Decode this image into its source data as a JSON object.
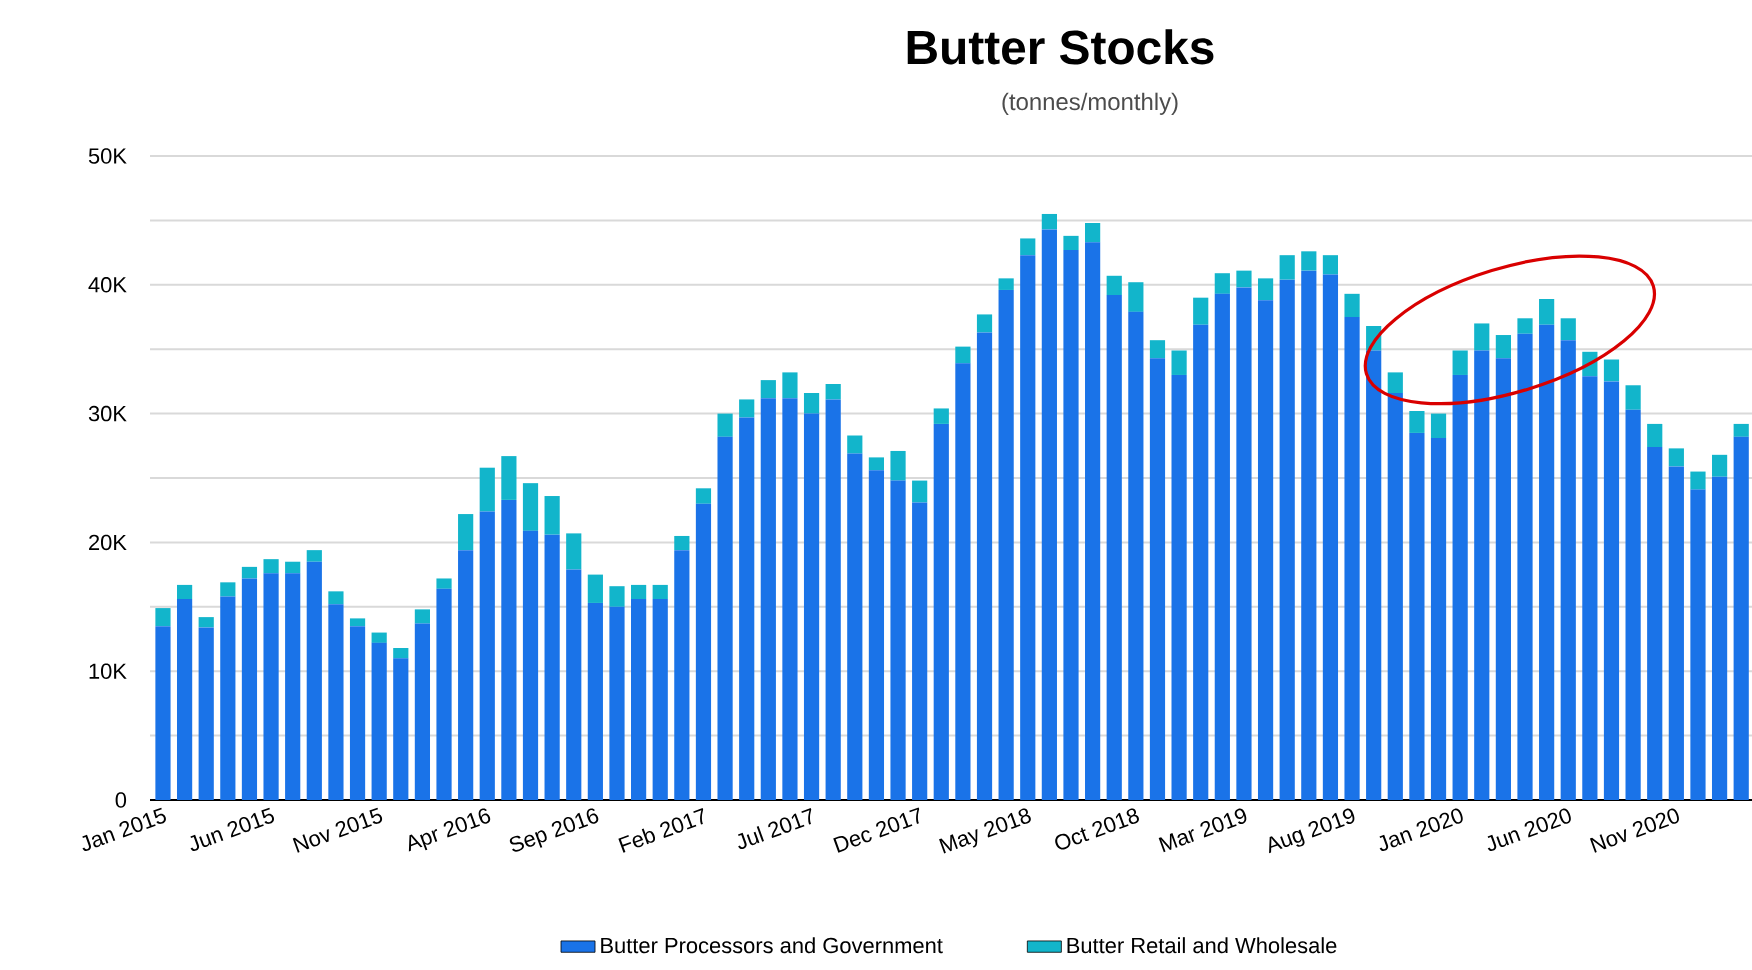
{
  "chart_data": {
    "type": "bar",
    "title": "Butter Stocks",
    "subtitle": "(tonnes/monthly)",
    "stacked": true,
    "grid": "y",
    "legend": "bottom",
    "categories": [
      "Jan 2015",
      null,
      null,
      null,
      null,
      "Jun 2015",
      null,
      null,
      null,
      null,
      "Nov 2015",
      null,
      null,
      null,
      null,
      "Apr 2016",
      null,
      null,
      null,
      null,
      "Sep 2016",
      null,
      null,
      null,
      null,
      "Feb 2017",
      null,
      null,
      null,
      null,
      "Jul 2017",
      null,
      null,
      null,
      null,
      "Dec 2017",
      null,
      null,
      null,
      null,
      "May 2018",
      null,
      null,
      null,
      null,
      "Oct 2018",
      null,
      null,
      null,
      null,
      "Mar 2019",
      null,
      null,
      null,
      null,
      "Aug 2019",
      null,
      null,
      null,
      null,
      "Jan 2020",
      null,
      null,
      null,
      null,
      "Jun 2020",
      null,
      null,
      null,
      null,
      "Nov 2020",
      null,
      null,
      null
    ],
    "series": [
      {
        "name": "Butter Processors and Government",
        "color": "#1a73e8",
        "values": [
          13500,
          15600,
          13400,
          15800,
          17200,
          17600,
          17600,
          18500,
          15200,
          13500,
          12200,
          11000,
          13700,
          16400,
          19400,
          22400,
          23300,
          20900,
          20600,
          17900,
          15300,
          15000,
          15600,
          15600,
          19400,
          23000,
          28200,
          29700,
          31200,
          31200,
          30000,
          31100,
          26900,
          25600,
          24800,
          23100,
          29200,
          33900,
          36300,
          39600,
          42300,
          44300,
          42700,
          43300,
          39200,
          37900,
          34300,
          33000,
          36900,
          39300,
          39800,
          38800,
          40400,
          41100,
          40800,
          37500,
          34900,
          31600,
          28500,
          28100,
          33000,
          34900,
          34300,
          36200,
          36900,
          35700,
          32900,
          32500,
          30300,
          27400,
          25900,
          24100,
          25100,
          28200
        ]
      },
      {
        "name": "Butter Retail and Wholesale",
        "color": "#12b5cb",
        "values": [
          1400,
          1100,
          800,
          1100,
          900,
          1100,
          900,
          900,
          1000,
          600,
          800,
          800,
          1100,
          800,
          2800,
          3400,
          3400,
          3700,
          3000,
          2800,
          2200,
          1600,
          1100,
          1100,
          1100,
          1200,
          1800,
          1400,
          1400,
          2000,
          1600,
          1200,
          1400,
          1000,
          2300,
          1700,
          1200,
          1300,
          1400,
          900,
          1300,
          1200,
          1100,
          1500,
          1500,
          2300,
          1400,
          1900,
          2100,
          1600,
          1300,
          1700,
          1900,
          1500,
          1500,
          1800,
          1900,
          1600,
          1700,
          1900,
          1900,
          2100,
          1800,
          1200,
          2000,
          1700,
          1900,
          1700,
          1900,
          1800,
          1400,
          1400,
          1700,
          1000
        ]
      }
    ],
    "ylim": [
      0,
      50000
    ],
    "yticks": [
      {
        "value": 0,
        "label": "0"
      },
      {
        "value": 5000,
        "label": null
      },
      {
        "value": 10000,
        "label": "10K"
      },
      {
        "value": 15000,
        "label": null
      },
      {
        "value": 20000,
        "label": "20K"
      },
      {
        "value": 25000,
        "label": null
      },
      {
        "value": 30000,
        "label": "30K"
      },
      {
        "value": 35000,
        "label": null
      },
      {
        "value": 40000,
        "label": "40K"
      },
      {
        "value": 45000,
        "label": null
      },
      {
        "value": 50000,
        "label": "50K"
      }
    ]
  }
}
